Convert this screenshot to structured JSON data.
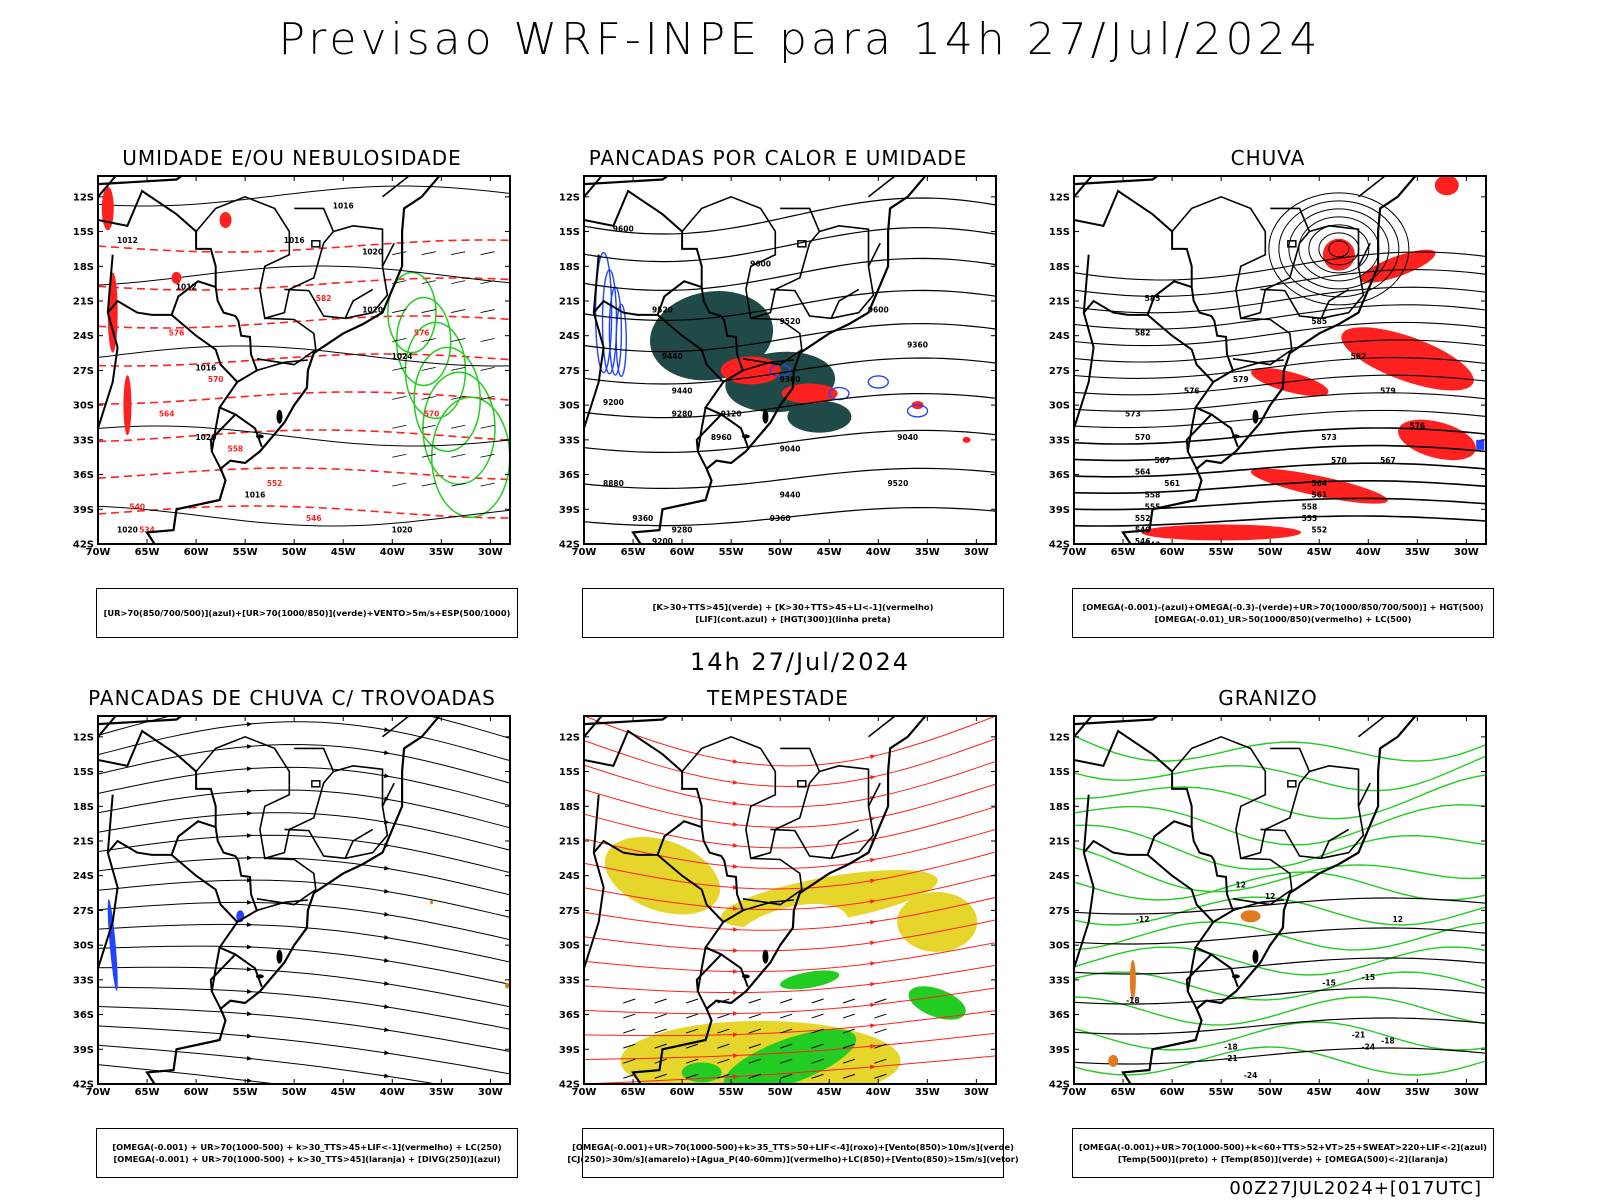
{
  "title": "Previsao WRF-INPE  para 14h 27/Jul/2024",
  "mid_title": "14h 27/Jul/2024",
  "footer": "00Z27JUL2024+[017UTC]",
  "colors": {
    "black": "#000000",
    "red": "#ff2020",
    "green": "#22cc22",
    "blue": "#2244ff",
    "teal": "#1f4a48",
    "yellow": "#e6d62c",
    "orange": "#e07a20"
  },
  "axes": {
    "lat_ticks": [
      "12S",
      "15S",
      "18S",
      "21S",
      "24S",
      "27S",
      "30S",
      "33S",
      "36S",
      "39S",
      "42S"
    ],
    "lon_ticks": [
      "70W",
      "65W",
      "60W",
      "55W",
      "50W",
      "45W",
      "40W",
      "35W",
      "30W"
    ]
  },
  "panels": [
    {
      "id": "umidade",
      "title": "UMIDADE E/OU NEBULOSIDADE",
      "legend": [
        "[UR>70(850/700/500)](azul)+[UR>70(1000/850)](verde)+VENTO>5m/s+ESP(500/1000)"
      ],
      "contour_labels": [
        "1016",
        "1016",
        "1020",
        "1012",
        "1012",
        "1020",
        "1024",
        "1016",
        "1020",
        "1016",
        "1020",
        "1020"
      ],
      "red_labels": [
        "576",
        "570",
        "564",
        "558",
        "552",
        "546",
        "540",
        "534",
        "582",
        "576",
        "570"
      ]
    },
    {
      "id": "pancadas_calor",
      "title": "PANCADAS POR CALOR E UMIDADE",
      "legend": [
        "[K>30+TTS>45](verde) + [K>30+TTS>45+LI<-1](vermelho)",
        "[LIF](cont.azul) + [HGT(300)](linha preta)"
      ],
      "contour_labels": [
        "9600",
        "9600",
        "9520",
        "9440",
        "9520",
        "9600",
        "9440",
        "9360",
        "9360",
        "9280",
        "9200",
        "9120",
        "9040",
        "8960",
        "8880",
        "9360",
        "9280",
        "9200",
        "9120",
        "9040",
        "9520",
        "9440",
        "9360"
      ]
    },
    {
      "id": "chuva",
      "title": "CHUVA",
      "legend": [
        "[OMEGA(-0.001)-(azul)+OMEGA(-0.3)-(verde)+UR>70(1000/850/700/500)] + HGT(500)",
        "[OMEGA(-0.01)_UR>50(1000/850)(vermelho) + LC(500)"
      ],
      "contour_labels": [
        "585",
        "582",
        "579",
        "576",
        "573",
        "570",
        "567",
        "564",
        "561",
        "558",
        "555",
        "552",
        "549",
        "546",
        "543",
        "585",
        "582",
        "579",
        "576",
        "573",
        "570",
        "567",
        "564",
        "561",
        "558",
        "555",
        "552"
      ]
    },
    {
      "id": "trovoadas",
      "title": "PANCADAS DE CHUVA C/ TROVOADAS",
      "legend": [
        "[OMEGA(-0.001) + UR>70(1000-500) + k>30_TTS>45+LIF<-1](vermelho) + LC(250)",
        "[OMEGA(-0.001) + UR>70(1000-500) + k>30_TTS>45](laranja) + [DIVG(250)](azul)"
      ]
    },
    {
      "id": "tempestade",
      "title": "TEMPESTADE",
      "legend": [
        "[OMEGA(-0.001)+UR>70(1000-500)+k>35_TTS>50+LIF<-4](roxo)+[Vento(850)>10m/s](verde)",
        "[CJ(250)>30m/s](amarelo)+[Agua_P(40-60mm)](vermelho)+LC(850)+[Vento(850)>15m/s](vetor)"
      ]
    },
    {
      "id": "granizo",
      "title": "GRANIZO",
      "legend": [
        "[OMEGA(-0.001)+UR>70(1000-500)+k<60+TTS>52+VT>25+SWEAT>220+LIF<-2](azul)",
        "[Temp(500)](preto) + [Temp(850)](verde) + [OMEGA(500)<-2](laranja)"
      ],
      "contour_labels": [
        "12",
        "12",
        "-12",
        "12",
        "-15",
        "-18",
        "-18",
        "-21",
        "-21",
        "-24",
        "-24",
        "-15",
        "-18"
      ]
    }
  ]
}
